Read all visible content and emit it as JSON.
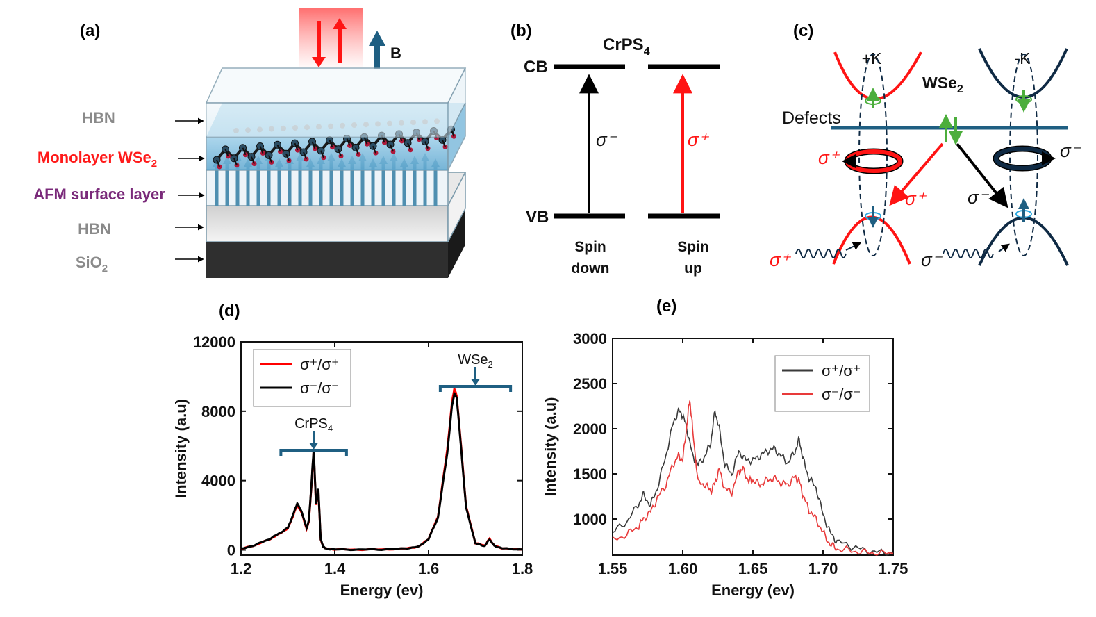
{
  "panels": {
    "a": {
      "label": "(a)",
      "field_label": "B",
      "layers": [
        {
          "name": "HBN",
          "color": "#8a8a8a"
        },
        {
          "name": "Monolayer WSe",
          "sub": "2",
          "color": "#ff1a1a"
        },
        {
          "name": "AFM surface layer",
          "color": "#7a2a7a"
        },
        {
          "name": "HBN",
          "color": "#8a8a8a"
        },
        {
          "name": "SiO",
          "sub": "2",
          "color": "#8a8a8a"
        }
      ]
    },
    "b": {
      "label": "(b)",
      "title": "CrPS",
      "title_sub": "4",
      "cb_label": "CB",
      "vb_label": "VB",
      "sigma_minus": "σ⁻",
      "sigma_plus": "σ⁺",
      "spin_down_line1": "Spin",
      "spin_down_line2": "down",
      "spin_up_line1": "Spin",
      "spin_up_line2": "up"
    },
    "c": {
      "label": "(c)",
      "plus_k": "+K",
      "minus_k": "-K",
      "material": "WSe",
      "material_sub": "2",
      "defects": "Defects",
      "sigma_plus": "σ⁺",
      "sigma_minus": "σ⁻"
    }
  },
  "colors": {
    "red": "#ff1414",
    "navy": "#0f2a44",
    "teal": "#1f5f82",
    "green": "#4cae3c",
    "black": "#000000"
  },
  "chart_data": [
    {
      "id": "d",
      "panel_label": "(d)",
      "type": "line",
      "xlabel": "Energy (ev)",
      "ylabel": "Intensity (a.u)",
      "xlim": [
        1.2,
        1.8
      ],
      "ylim": [
        -300,
        12000
      ],
      "xticks": [
        1.2,
        1.4,
        1.6,
        1.8
      ],
      "xtick_labels": [
        "1.2",
        "1.4",
        "1.6",
        "1.8"
      ],
      "yticks": [
        0,
        4000,
        8000,
        12000
      ],
      "ytick_labels": [
        "0",
        "4000",
        "8000",
        "12000"
      ],
      "legend": [
        "σ⁺/σ⁺",
        "σ⁻/σ⁻"
      ],
      "legend_position": "top-left",
      "annotations": [
        {
          "text": "CrPS",
          "sub": "4",
          "bracket": [
            1.285,
            1.425
          ],
          "arrow_x": 1.355
        },
        {
          "text": "WSe",
          "sub": "2",
          "bracket": [
            1.625,
            1.775
          ],
          "arrow_x": 1.7
        }
      ],
      "series": [
        {
          "name": "σ⁺/σ⁺",
          "color": "#ff0000",
          "x": [
            1.2,
            1.23,
            1.26,
            1.28,
            1.3,
            1.31,
            1.32,
            1.33,
            1.34,
            1.345,
            1.35,
            1.355,
            1.36,
            1.365,
            1.37,
            1.375,
            1.38,
            1.4,
            1.45,
            1.5,
            1.55,
            1.58,
            1.6,
            1.62,
            1.64,
            1.65,
            1.655,
            1.66,
            1.67,
            1.68,
            1.7,
            1.72,
            1.73,
            1.74,
            1.76,
            1.8
          ],
          "y": [
            50,
            280,
            600,
            900,
            1250,
            1900,
            2600,
            2100,
            1200,
            1700,
            3600,
            5700,
            2600,
            3400,
            600,
            200,
            80,
            30,
            20,
            30,
            80,
            200,
            650,
            1900,
            5800,
            8500,
            9300,
            8900,
            5800,
            2500,
            400,
            250,
            650,
            250,
            80,
            30
          ]
        },
        {
          "name": "σ⁻/σ⁻",
          "color": "#000000",
          "x": [
            1.2,
            1.23,
            1.26,
            1.28,
            1.3,
            1.31,
            1.32,
            1.33,
            1.34,
            1.345,
            1.35,
            1.355,
            1.36,
            1.365,
            1.37,
            1.375,
            1.38,
            1.4,
            1.45,
            1.5,
            1.55,
            1.58,
            1.6,
            1.62,
            1.64,
            1.65,
            1.655,
            1.66,
            1.67,
            1.68,
            1.7,
            1.72,
            1.73,
            1.74,
            1.76,
            1.8
          ],
          "y": [
            50,
            290,
            620,
            930,
            1280,
            1950,
            2700,
            2150,
            1250,
            1750,
            3700,
            5800,
            2650,
            3500,
            620,
            210,
            80,
            30,
            20,
            30,
            80,
            200,
            630,
            1850,
            5600,
            8300,
            9000,
            8800,
            5700,
            2450,
            380,
            230,
            620,
            240,
            80,
            30
          ]
        }
      ]
    },
    {
      "id": "e",
      "panel_label": "(e)",
      "type": "line",
      "xlabel": "Energy (ev)",
      "ylabel": "Intensity (a.u)",
      "xlim": [
        1.55,
        1.75
      ],
      "ylim": [
        600,
        3000
      ],
      "xticks": [
        1.55,
        1.6,
        1.65,
        1.7,
        1.75
      ],
      "xtick_labels": [
        "1.55",
        "1.60",
        "1.65",
        "1.70",
        "1.75"
      ],
      "yticks": [
        1000,
        1500,
        2000,
        2500,
        3000
      ],
      "ytick_labels": [
        "1000",
        "1500",
        "2000",
        "2500",
        "3000"
      ],
      "legend": [
        "σ⁺/σ⁺",
        "σ⁻/σ⁻"
      ],
      "legend_position": "top-right",
      "series": [
        {
          "name": "σ⁺/σ⁺",
          "color": "#3a3a3a",
          "x": [
            1.55,
            1.56,
            1.568,
            1.572,
            1.577,
            1.582,
            1.588,
            1.593,
            1.597,
            1.6,
            1.603,
            1.607,
            1.611,
            1.616,
            1.62,
            1.623,
            1.626,
            1.63,
            1.635,
            1.64,
            1.645,
            1.65,
            1.655,
            1.66,
            1.665,
            1.67,
            1.675,
            1.68,
            1.683,
            1.686,
            1.69,
            1.695,
            1.7,
            1.705,
            1.71,
            1.72,
            1.73,
            1.74,
            1.75
          ],
          "y": [
            850,
            970,
            1150,
            1270,
            1150,
            1350,
            1700,
            2050,
            2200,
            2150,
            2000,
            1700,
            1600,
            1700,
            1850,
            2200,
            2000,
            1600,
            1500,
            1750,
            1650,
            1650,
            1700,
            1750,
            1780,
            1700,
            1620,
            1750,
            1880,
            1650,
            1450,
            1350,
            1050,
            850,
            750,
            700,
            650,
            630,
            620
          ]
        },
        {
          "name": "σ⁻/σ⁻",
          "color": "#e83a3a",
          "x": [
            1.55,
            1.56,
            1.568,
            1.572,
            1.577,
            1.582,
            1.588,
            1.593,
            1.597,
            1.6,
            1.603,
            1.605,
            1.607,
            1.611,
            1.616,
            1.62,
            1.623,
            1.626,
            1.63,
            1.635,
            1.64,
            1.643,
            1.647,
            1.65,
            1.655,
            1.66,
            1.665,
            1.67,
            1.675,
            1.68,
            1.683,
            1.686,
            1.69,
            1.695,
            1.7,
            1.705,
            1.71,
            1.72,
            1.73,
            1.74,
            1.75
          ],
          "y": [
            760,
            830,
            910,
            1000,
            1080,
            1230,
            1380,
            1600,
            1700,
            1650,
            2050,
            2330,
            2000,
            1400,
            1380,
            1310,
            1400,
            1550,
            1330,
            1300,
            1530,
            1550,
            1420,
            1430,
            1380,
            1430,
            1450,
            1400,
            1380,
            1470,
            1420,
            1250,
            1100,
            1000,
            850,
            720,
            670,
            650,
            630,
            620,
            620
          ]
        }
      ]
    }
  ]
}
